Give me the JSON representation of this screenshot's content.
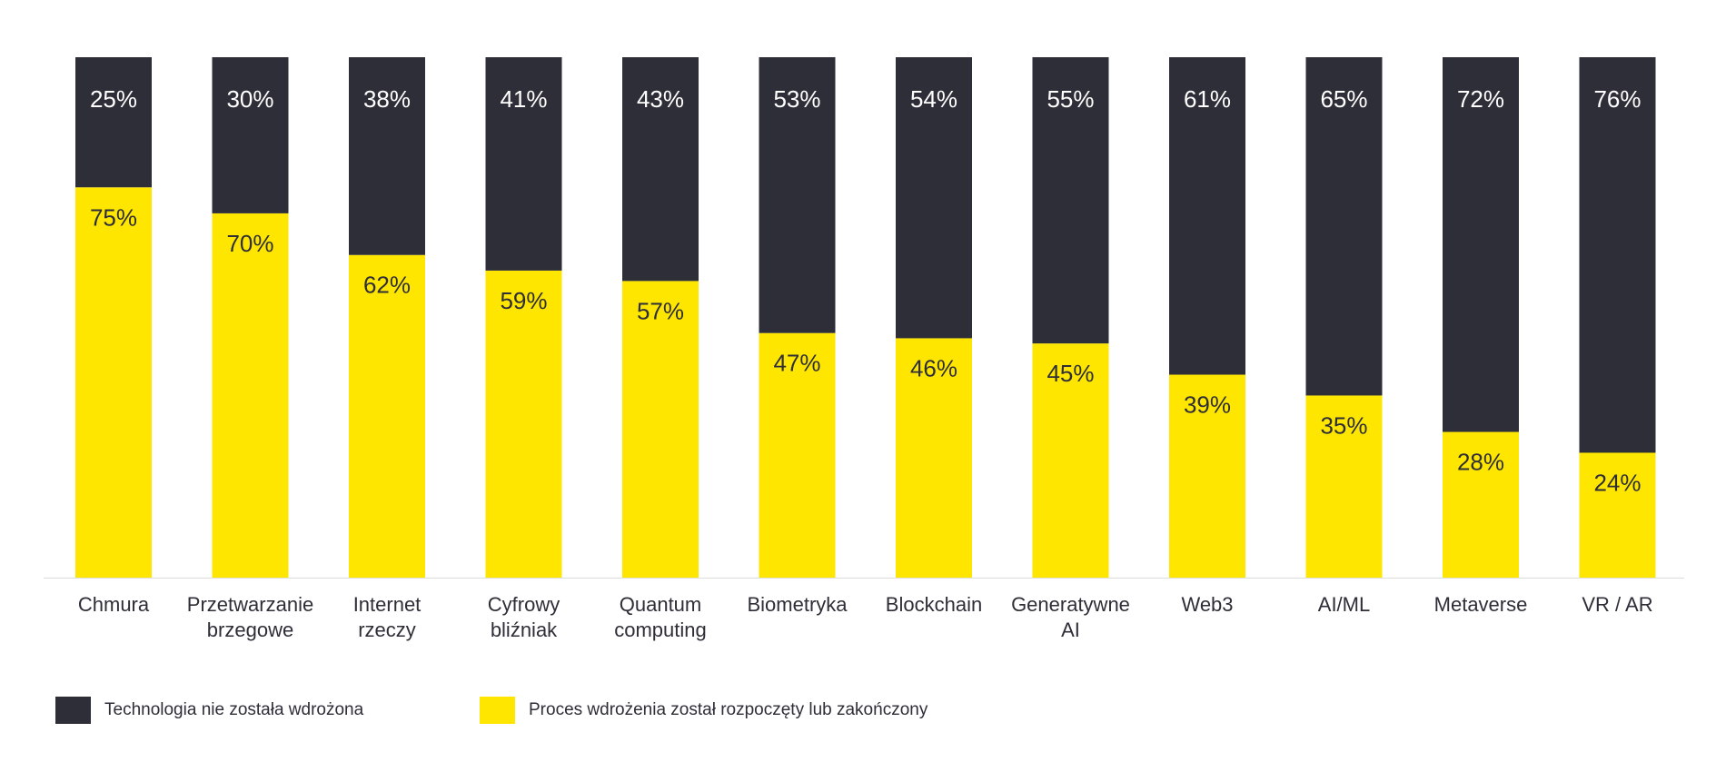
{
  "chart_data": {
    "type": "bar",
    "stacked": true,
    "orientation": "vertical",
    "categories": [
      [
        "Chmura"
      ],
      [
        "Przetwarzanie",
        "brzegowe"
      ],
      [
        "Internet",
        "rzeczy"
      ],
      [
        "Cyfrowy",
        "bliźniak"
      ],
      [
        "Quantum",
        "computing"
      ],
      [
        "Biometryka"
      ],
      [
        "Blockchain"
      ],
      [
        "Generatywne",
        "AI"
      ],
      [
        "Web3"
      ],
      [
        "AI/ML"
      ],
      [
        "Metaverse"
      ],
      [
        "VR / AR"
      ]
    ],
    "series": [
      {
        "name": "Proces wdrożenia został rozpoczęty lub zakończony",
        "color": "#ffe600",
        "label_color": "#2e2e38",
        "values": [
          75,
          70,
          62,
          59,
          57,
          47,
          46,
          45,
          39,
          35,
          28,
          24
        ]
      },
      {
        "name": "Technologia nie została wdrożona",
        "color": "#2e2e38",
        "label_color": "#ffffff",
        "values": [
          25,
          30,
          38,
          41,
          43,
          53,
          54,
          55,
          61,
          65,
          72,
          76
        ]
      }
    ],
    "value_suffix": "%",
    "ylim": [
      0,
      100
    ],
    "grid": false,
    "y_axis_visible": false,
    "legend_position": "bottom-left"
  },
  "legend": [
    {
      "label": "Technologia nie została wdrożona",
      "color": "#2e2e38"
    },
    {
      "label": "Proces wdrożenia został rozpoczęty lub zakończony",
      "color": "#ffe600"
    }
  ]
}
